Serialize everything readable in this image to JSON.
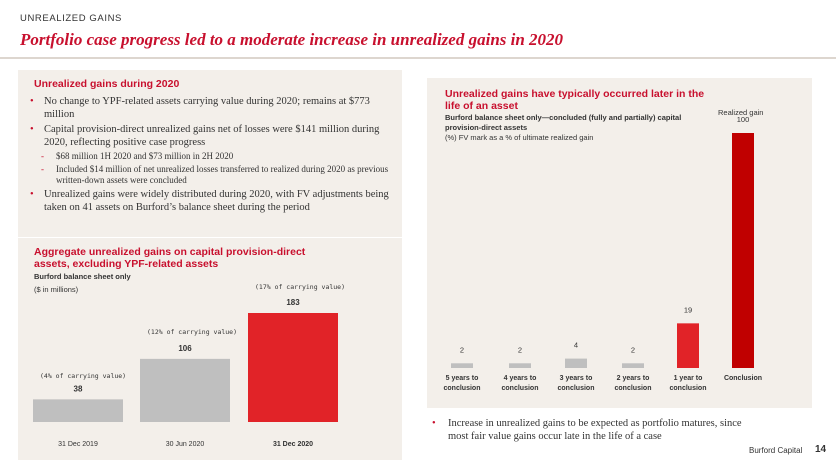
{
  "header": {
    "section_label": "UNREALIZED GAINS",
    "title": "Portfolio case progress led to a moderate increase in unrealized gains in 2020"
  },
  "left": {
    "heading": "Unrealized gains during 2020",
    "bullet1": "No change to YPF-related assets carrying value during 2020; remains at $773 million",
    "bullet2": "Capital provision-direct unrealized gains net of losses were $141 million during 2020, reflecting positive case progress",
    "sub1": "$68 million 1H 2020 and $73 million in 2H 2020",
    "sub2": "Included $14 million of net unrealized losses transferred to realized during 2020 as previous written-down assets were concluded",
    "bullet3": "Unrealized gains were widely distributed during 2020, with FV adjustments being taken on 41 assets on Burford’s balance sheet during the period"
  },
  "left_chart": {
    "heading": "Aggregate unrealized gains on capital provision-direct assets, excluding YPF-related assets",
    "sub1": "Burford balance sheet only",
    "sub2": "($ in millions)"
  },
  "right_chart": {
    "heading": "Unrealized gains have typically occurred later in the life of an asset",
    "sub1": "Burford balance sheet only—concluded (fully and partially) capital provision-direct assets",
    "sub2": "(%) FV mark as a % of ultimate realized gain",
    "annotation": "Realized gain"
  },
  "footer": {
    "bullet": "Increase in unrealized gains to be expected as portfolio matures, since most fair value gains occur late in the life of a case",
    "brand": "Burford Capital",
    "page": "14"
  },
  "colors": {
    "red": "#e12328",
    "dark_red": "#c00000",
    "gray": "#bfbfbf",
    "accent": "#c8102e"
  },
  "chart_data": [
    {
      "type": "bar",
      "title": "Aggregate unrealized gains on capital provision-direct assets, excluding YPF-related assets",
      "categories": [
        "31 Dec 2019",
        "30 Jun 2020",
        "31 Dec 2020"
      ],
      "values": [
        38,
        106,
        183
      ],
      "value_labels": [
        "38",
        "106",
        "183"
      ],
      "annotations": [
        "(4% of carrying value)",
        "(12% of carrying value)",
        "(17% of carrying value)"
      ],
      "bar_colors": [
        "#bfbfbf",
        "#bfbfbf",
        "#e12328"
      ],
      "ylim": [
        0,
        183
      ],
      "grid": false
    },
    {
      "type": "bar",
      "title": "Unrealized gains have typically occurred later in the life of an asset",
      "categories": [
        "5 years to conclusion",
        "4 years to conclusion",
        "3 years to conclusion",
        "2 years to conclusion",
        "1 year to conclusion",
        "Conclusion"
      ],
      "values": [
        2,
        2,
        4,
        2,
        19,
        100
      ],
      "value_labels": [
        "2",
        "2",
        "4",
        "2",
        "19",
        "100"
      ],
      "bar_colors": [
        "#bfbfbf",
        "#bfbfbf",
        "#bfbfbf",
        "#bfbfbf",
        "#e12328",
        "#c00000"
      ],
      "ylim": [
        0,
        100
      ],
      "grid": false
    }
  ]
}
